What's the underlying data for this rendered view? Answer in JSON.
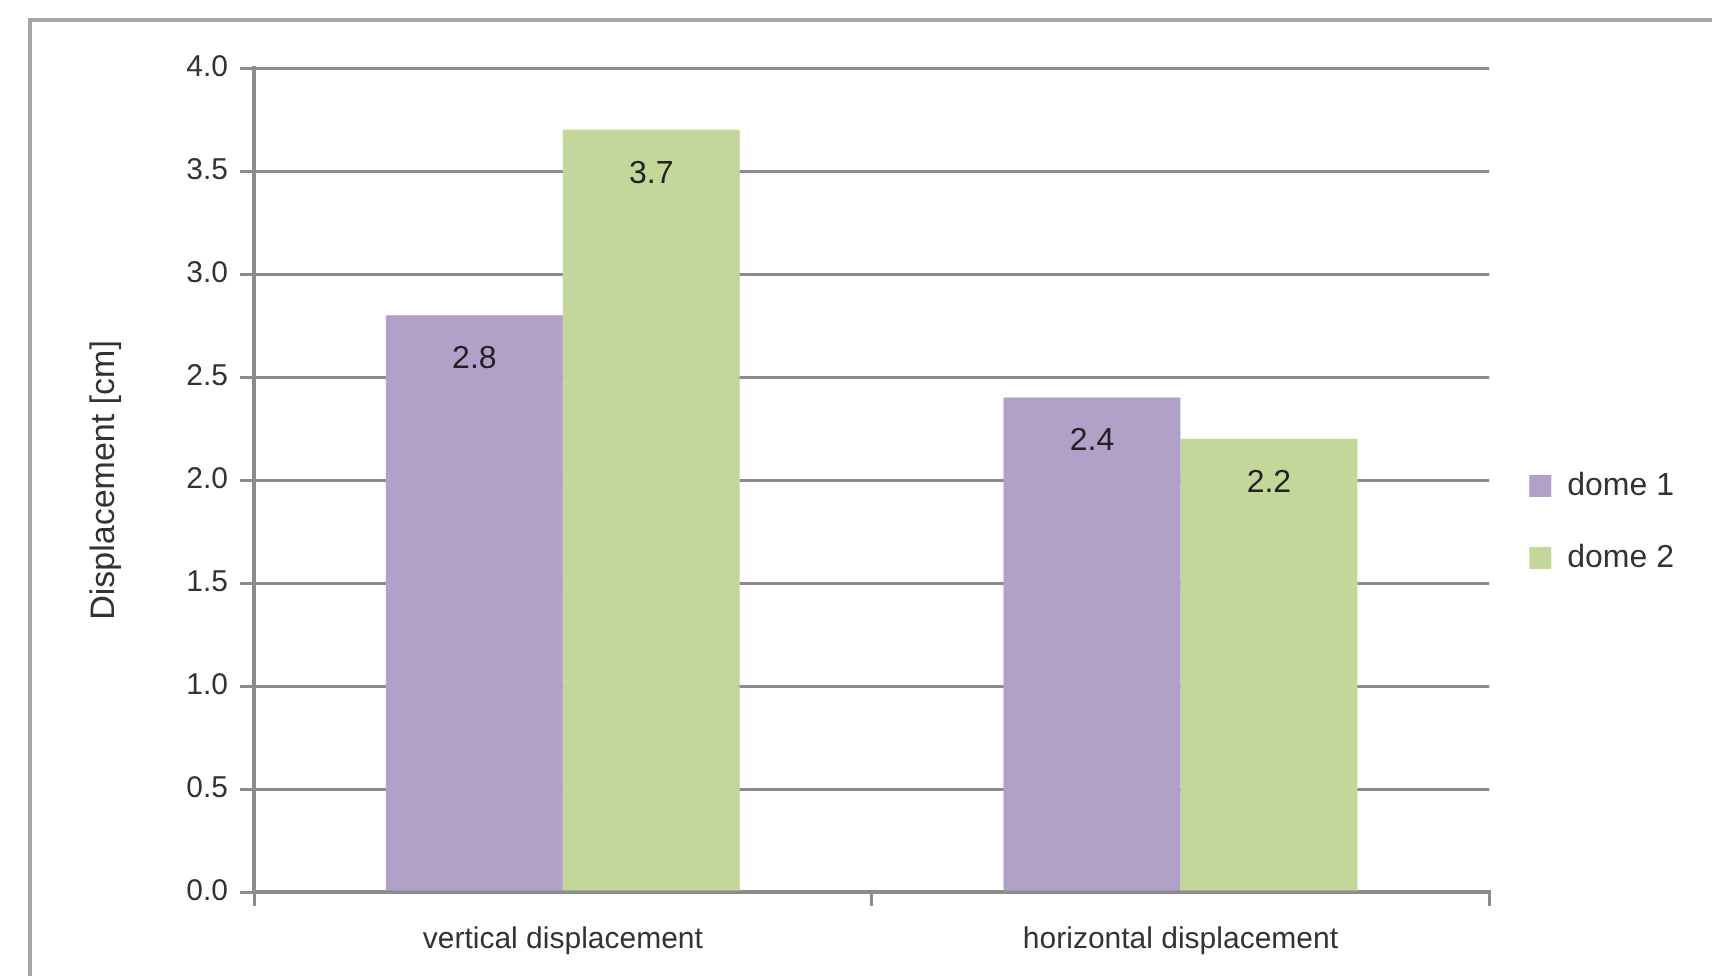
{
  "chart_data": {
    "type": "bar",
    "ylabel": "Displacement [cm]",
    "categories": [
      "vertical displacement",
      "horizontal displacement"
    ],
    "series": [
      {
        "name": "dome 1",
        "color": "#b1a0c7",
        "values": [
          2.8,
          2.4
        ]
      },
      {
        "name": "dome 2",
        "color": "#c4d79b",
        "values": [
          3.7,
          2.2
        ]
      }
    ],
    "ylim": [
      0,
      4
    ],
    "yticks": [
      {
        "value": 0,
        "label": "0.0"
      },
      0.5,
      {
        "value": 1,
        "label": "1.0"
      },
      1.5,
      {
        "value": 2,
        "label": "2.0"
      },
      2.5,
      {
        "value": 3,
        "label": "3.0"
      },
      3.5,
      {
        "value": 4,
        "label": "4.0"
      }
    ],
    "grid": "y",
    "legend": "right",
    "data_labels": true
  }
}
